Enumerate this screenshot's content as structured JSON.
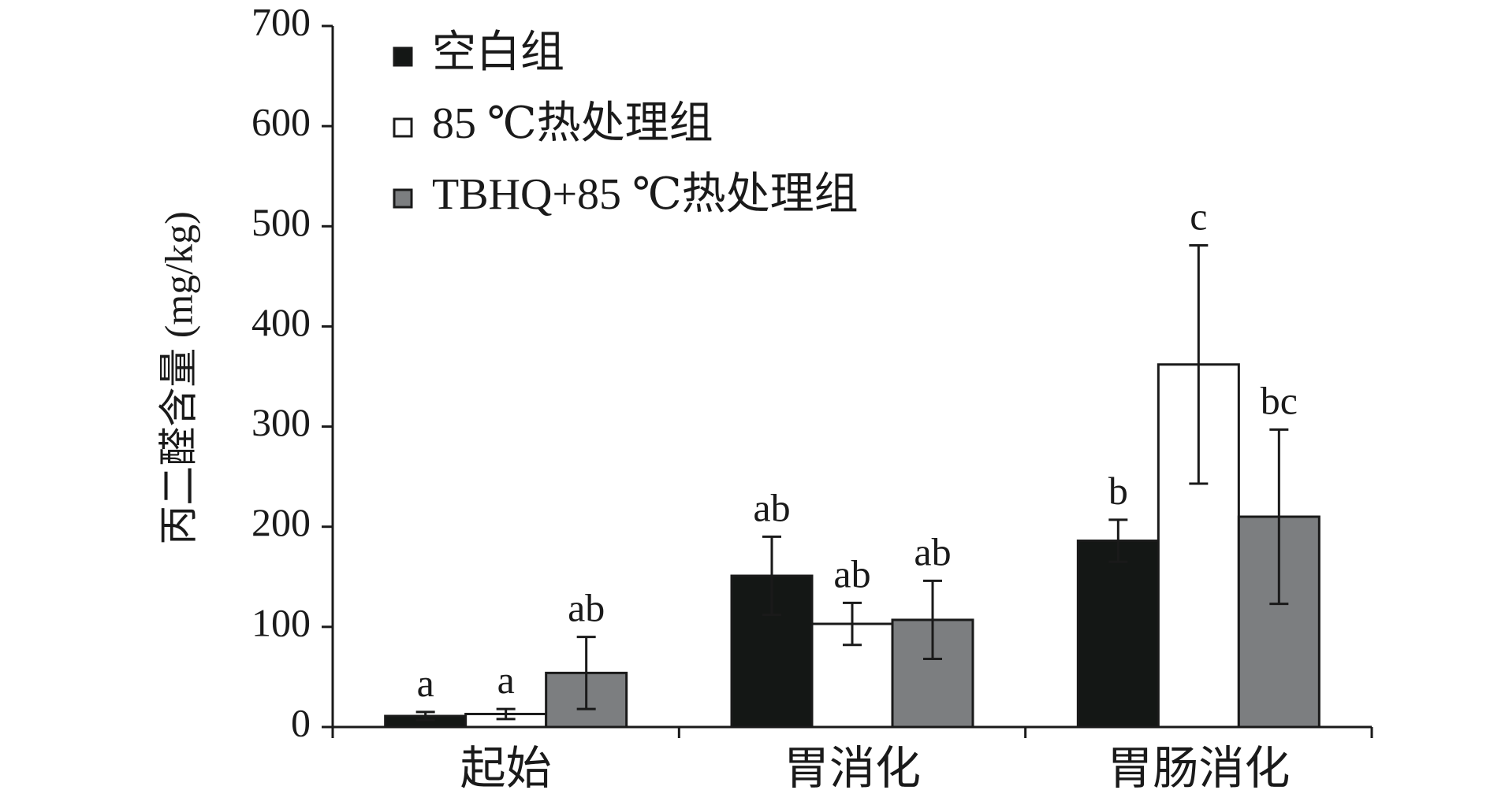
{
  "chart_data": {
    "type": "bar",
    "title": "",
    "xlabel": "",
    "ylabel": "丙二醛含量 (mg/kg)",
    "ylim": [
      0,
      700
    ],
    "yticks": [
      0,
      100,
      200,
      300,
      400,
      500,
      600,
      700
    ],
    "categories": [
      "起始",
      "胃消化",
      "胃肠消化"
    ],
    "legend_position": "top-left",
    "grid": false,
    "series": [
      {
        "name": "空白组",
        "color": "#141715",
        "values": [
          11,
          151,
          186
        ],
        "errors": [
          4,
          39,
          21
        ],
        "labels": [
          "a",
          "ab",
          "b"
        ]
      },
      {
        "name": "85 ℃热处理组",
        "color": "#ffffff",
        "values": [
          13,
          103,
          362
        ],
        "errors": [
          5,
          21,
          119
        ],
        "labels": [
          "a",
          "ab",
          "c"
        ]
      },
      {
        "name": "TBHQ+85 ℃热处理组",
        "color": "#7c7e80",
        "values": [
          54,
          107,
          210
        ],
        "errors": [
          36,
          39,
          87
        ],
        "labels": [
          "ab",
          "ab",
          "bc"
        ]
      }
    ]
  }
}
